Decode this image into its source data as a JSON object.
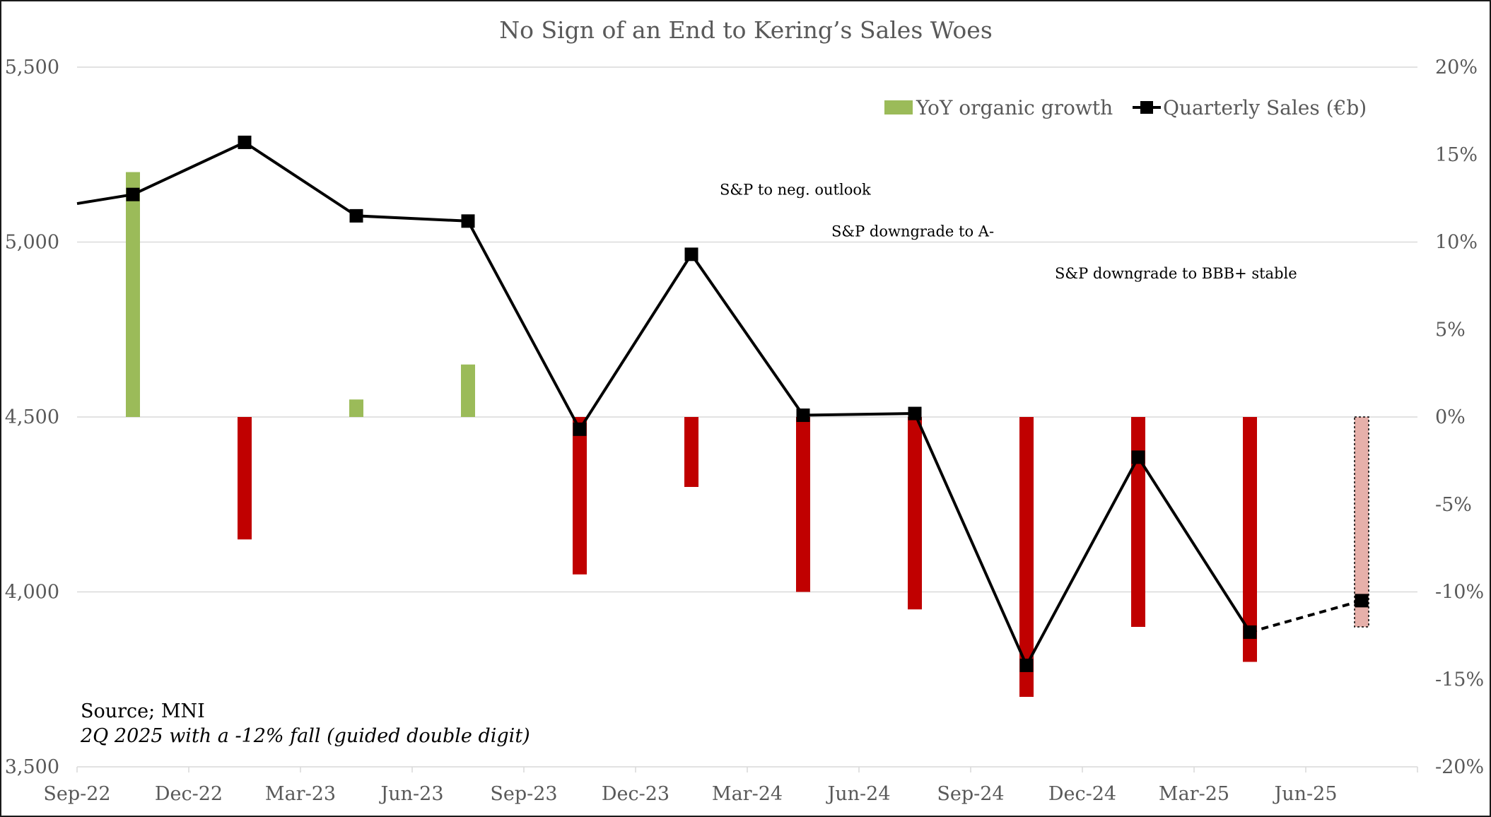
{
  "chart_data": {
    "type": "bar+line",
    "title": "No Sign of an End to Kering’s Sales Woes",
    "categories": [
      "Sep-22",
      "Dec-22",
      "Mar-23",
      "Jun-23",
      "Sep-23",
      "Dec-23",
      "Mar-24",
      "Jun-24",
      "Sep-24",
      "Dec-24",
      "Mar-25",
      "Jun-25"
    ],
    "left_axis": {
      "min": 3500,
      "max": 5500,
      "ticks": [
        "3,500",
        "4,000",
        "4,500",
        "5,000",
        "5,500"
      ],
      "tick_values": [
        3500,
        4000,
        4500,
        5000,
        5500
      ]
    },
    "right_axis": {
      "min": -20,
      "max": 20,
      "ticks": [
        "-20%",
        "-15%",
        "-10%",
        "-5%",
        "0%",
        "5%",
        "10%",
        "15%",
        "20%"
      ],
      "tick_values": [
        -20,
        -15,
        -10,
        -5,
        0,
        5,
        10,
        15,
        20
      ]
    },
    "series": [
      {
        "name": "YoY organic growth",
        "type": "bar",
        "axis": "right",
        "values": [
          14,
          -7,
          1,
          3,
          -9,
          -4,
          -10,
          -11,
          -16,
          -12,
          -14,
          -12
        ],
        "positive_color": "#9bbb59",
        "negative_color": "#c00000",
        "guided_color": "#e6b0aa",
        "guided_index": 11
      },
      {
        "name": "Quarterly Sales (€b)",
        "type": "line",
        "axis": "left",
        "values": [
          5136,
          5285,
          5075,
          5060,
          4465,
          4965,
          4505,
          4510,
          3790,
          4385,
          3885,
          3975
        ],
        "lead_in_value": 5110,
        "dashed_from_index": 10,
        "color": "#000000"
      }
    ],
    "annotations": [
      {
        "text": "S&P to neg. outlook",
        "x_category": "Dec-23",
        "y_value": 5150
      },
      {
        "text": "S&P downgrade to A-",
        "x_category": "Mar-24",
        "y_value": 5030
      },
      {
        "text": "S&P downgrade to BBB+ stable",
        "x_category": "Sep-24",
        "y_value": 4910
      }
    ],
    "legend": {
      "placement": "top-right"
    }
  },
  "notes": {
    "source": "Source; MNI",
    "guidance": "2Q 2025 with a -12% fall (guided double digit)"
  },
  "colors": {
    "grid": "#d9d9d9",
    "axis_text": "#595959"
  }
}
